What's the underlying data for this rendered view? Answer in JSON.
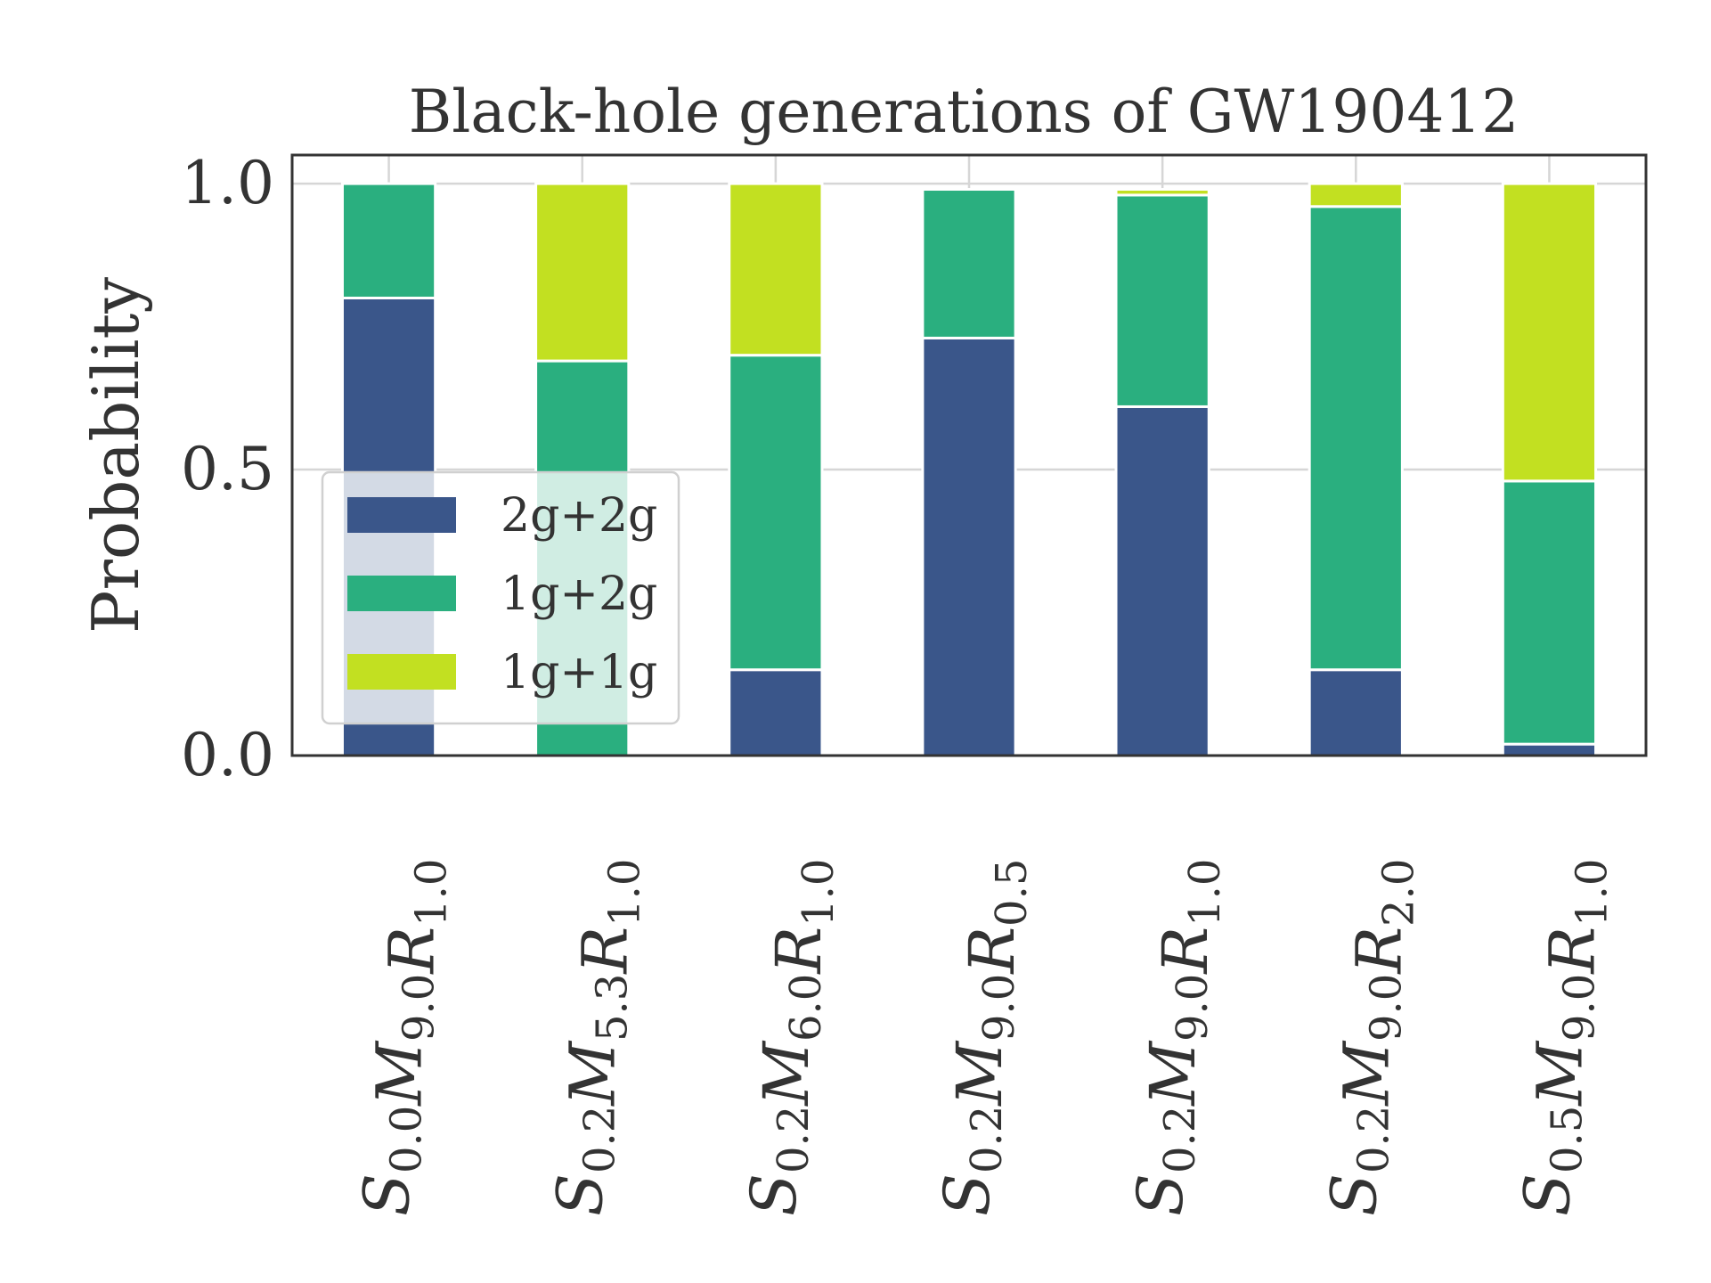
{
  "chart_data": {
    "type": "bar",
    "stacked": true,
    "title": "Black-hole generations of GW190412",
    "xlabel": "",
    "ylabel": "Probability",
    "ylim": [
      0,
      1.05
    ],
    "yticks": [
      "0.0",
      "0.5",
      "1.0"
    ],
    "grid": true,
    "legend_position": "center-left",
    "categories": [
      {
        "label": "S0.0M9.0R1.0",
        "S": "0.0",
        "M": "9.0",
        "R": "1.0"
      },
      {
        "label": "S0.2M5.3R1.0",
        "S": "0.2",
        "M": "5.3",
        "R": "1.0"
      },
      {
        "label": "S0.2M6.0R1.0",
        "S": "0.2",
        "M": "6.0",
        "R": "1.0"
      },
      {
        "label": "S0.2M9.0R0.5",
        "S": "0.2",
        "M": "9.0",
        "R": "0.5"
      },
      {
        "label": "S0.2M9.0R1.0",
        "S": "0.2",
        "M": "9.0",
        "R": "1.0"
      },
      {
        "label": "S0.2M9.0R2.0",
        "S": "0.2",
        "M": "9.0",
        "R": "2.0"
      },
      {
        "label": "S0.5M9.0R1.0",
        "S": "0.5",
        "M": "9.0",
        "R": "1.0"
      }
    ],
    "series": [
      {
        "name": "2g+2g",
        "color": "#3a568a",
        "values": [
          0.8,
          0.0,
          0.15,
          0.73,
          0.61,
          0.15,
          0.02
        ]
      },
      {
        "name": "1g+2g",
        "color": "#2aaf7f",
        "values": [
          0.2,
          0.69,
          0.55,
          0.26,
          0.37,
          0.81,
          0.46
        ]
      },
      {
        "name": "1g+1g",
        "color": "#c2e021",
        "values": [
          0.0,
          0.31,
          0.3,
          0.0,
          0.01,
          0.04,
          0.52
        ]
      }
    ]
  }
}
